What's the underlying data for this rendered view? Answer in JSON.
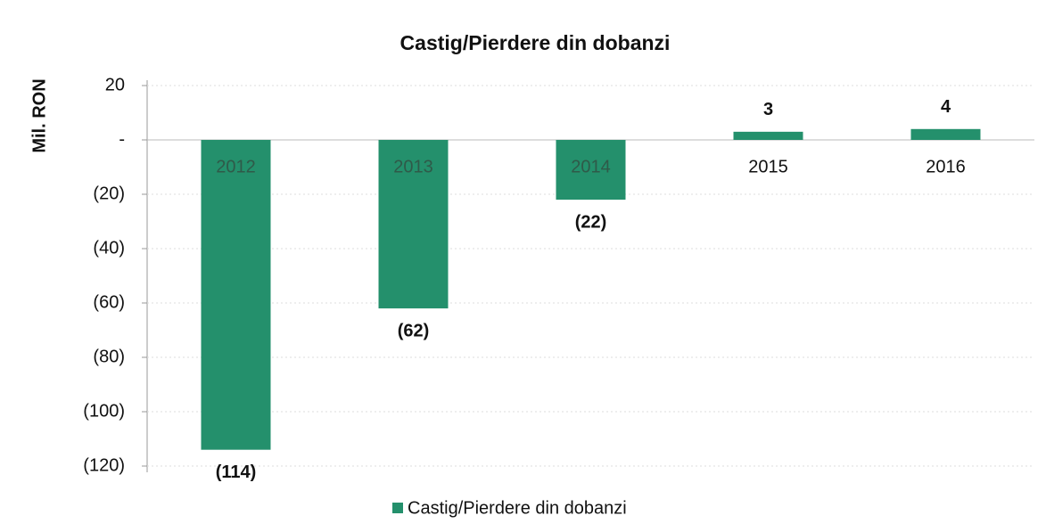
{
  "chart_data": {
    "type": "bar",
    "title": "Castig/Pierdere din dobanzi",
    "y_label": "Mil. RON",
    "categories": [
      "2012",
      "2013",
      "2014",
      "2015",
      "2016"
    ],
    "series": [
      {
        "name": "Castig/Pierdere din dobanzi",
        "color": "#24906c",
        "values": [
          -114,
          -62,
          -22,
          3,
          4
        ],
        "value_labels": [
          "(114)",
          "(62)",
          "(22)",
          "3",
          "4"
        ]
      }
    ],
    "ylim": [
      -120,
      20
    ],
    "yticks": [
      20,
      {
        "value": 0,
        "label": "-"
      },
      {
        "value": -20,
        "label": "(20)"
      },
      {
        "value": -40,
        "label": "(40)"
      },
      {
        "value": -60,
        "label": "(60)"
      },
      {
        "value": -80,
        "label": "(80)"
      },
      {
        "value": -100,
        "label": "(100)"
      },
      {
        "value": -120,
        "label": "(120)"
      }
    ],
    "grid": true,
    "legend": "bottom"
  }
}
